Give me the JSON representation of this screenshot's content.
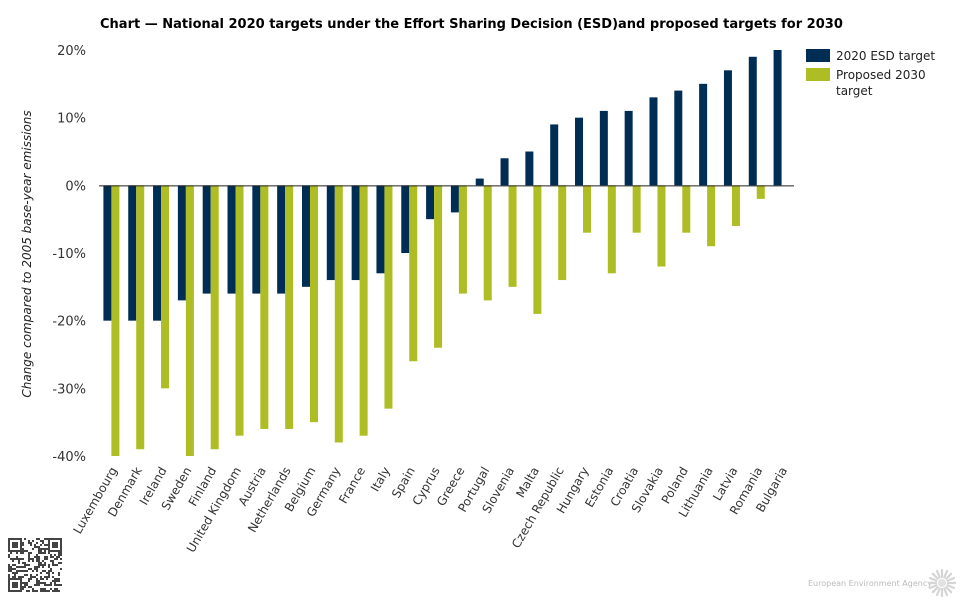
{
  "chart_data": {
    "type": "bar",
    "title": "Chart — National 2020 targets under the Effort Sharing Decision (ESD)and proposed targets for 2030",
    "ylabel": "Change compared to 2005 base-year emissions",
    "xlabel": "",
    "ylim": [
      -40,
      20
    ],
    "yticks": [
      20,
      10,
      0,
      -10,
      -20,
      -30,
      -40
    ],
    "ytick_labels": [
      "20%",
      "10%",
      "0%",
      "-10%",
      "-20%",
      "-30%",
      "-40%"
    ],
    "categories": [
      "Luxembourg",
      "Denmark",
      "Ireland",
      "Sweden",
      "Finland",
      "United Kingdom",
      "Austria",
      "Netherlands",
      "Belgium",
      "Germany",
      "France",
      "Italy",
      "Spain",
      "Cyprus",
      "Greece",
      "Portugal",
      "Slovenia",
      "Malta",
      "Czech Republic",
      "Hungary",
      "Estonia",
      "Croatia",
      "Slovakia",
      "Poland",
      "Lithuania",
      "Latvia",
      "Romania",
      "Bulgaria"
    ],
    "series": [
      {
        "name": "2020 ESD target",
        "color": "#002d54",
        "values": [
          -20,
          -20,
          -20,
          -17,
          -16,
          -16,
          -16,
          -16,
          -15,
          -14,
          -14,
          -13,
          -10,
          -5,
          -4,
          1,
          4,
          5,
          9,
          10,
          11,
          11,
          13,
          14,
          15,
          17,
          19,
          20
        ]
      },
      {
        "name": "Proposed 2030 target",
        "color": "#aebd24",
        "values": [
          -40,
          -39,
          -30,
          -40,
          -39,
          -37,
          -36,
          -36,
          -35,
          -38,
          -37,
          -33,
          -26,
          -24,
          -16,
          -17,
          -15,
          -19,
          -14,
          -7,
          -13,
          -7,
          -12,
          -7,
          -9,
          -6,
          -2,
          0
        ]
      }
    ],
    "grid": false,
    "legend_position": "top-right"
  },
  "legend": {
    "items": [
      {
        "label_lines": [
          "2020 ESD target"
        ],
        "color": "#002d54"
      },
      {
        "label_lines": [
          "Proposed 2030",
          "target"
        ],
        "color": "#aebd24"
      }
    ]
  },
  "footer": {
    "agency": "European Environment Agency",
    "qr_icon": "qr-code-icon",
    "logo_icon": "eea-sun-logo-icon"
  }
}
